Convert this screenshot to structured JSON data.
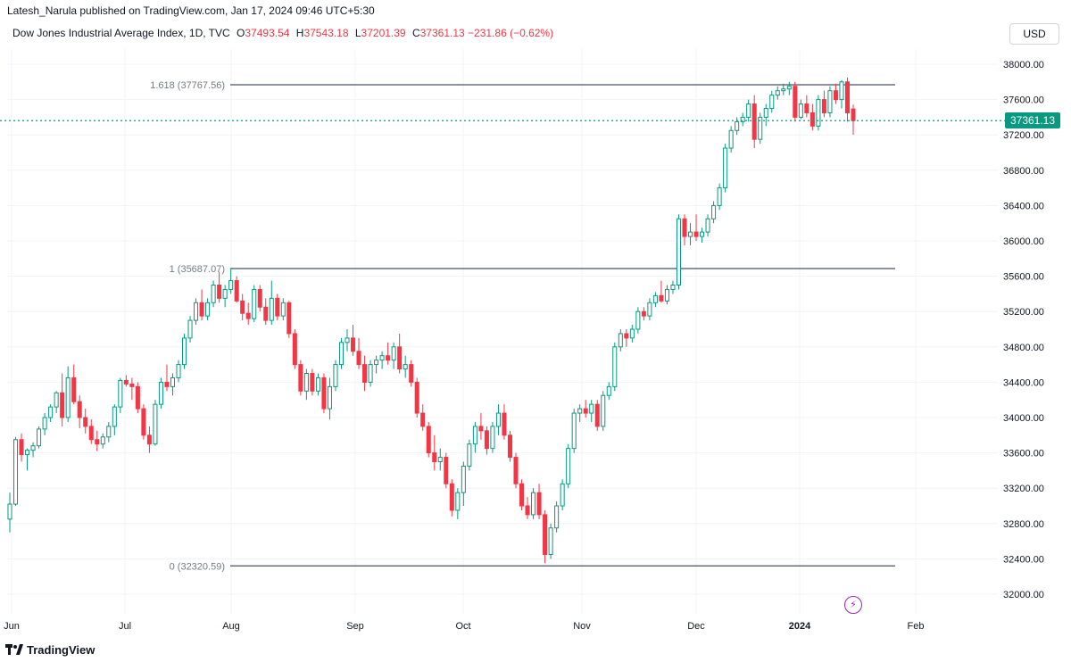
{
  "header": {
    "publish_text": "Latesh_Narula published on TradingView.com, Jan 17, 2024 09:46 UTC+5:30",
    "symbol": "Dow Jones Industrial Average Index, 1D, TVC",
    "open_label": "O",
    "open": "37493.54",
    "high_label": "H",
    "high": "37543.18",
    "low_label": "L",
    "low": "37201.39",
    "close_label": "C",
    "close": "37361.13",
    "change": "−231.86 (−0.62%)",
    "currency": "USD"
  },
  "footer": {
    "brand": "TradingView"
  },
  "colors": {
    "up": "#089981",
    "down": "#f23645",
    "fib": "#131722",
    "grid": "#f0f3fa"
  },
  "chart_data": {
    "type": "candlestick",
    "title": "Dow Jones Industrial Average Index, 1D, TVC",
    "ylim": [
      31800,
      38300
    ],
    "y_ticks": [
      "38000.00",
      "37600.00",
      "37200.00",
      "36800.00",
      "36400.00",
      "36000.00",
      "35600.00",
      "35200.00",
      "34800.00",
      "34400.00",
      "34000.00",
      "33600.00",
      "33200.00",
      "32800.00",
      "32400.00",
      "32000.00"
    ],
    "x_ticks": [
      "Jun",
      "Jul",
      "Aug",
      "Sep",
      "Oct",
      "Nov",
      "Dec",
      "2024",
      "Feb"
    ],
    "last_price": "37361.13",
    "fib_levels": [
      {
        "label": "1.618 (37767.56)",
        "value": 37767.56
      },
      {
        "label": "1 (35687.07)",
        "value": 35687.07
      },
      {
        "label": "0 (32320.59)",
        "value": 32320.59
      }
    ],
    "candles": [
      [
        32850,
        33150,
        32700,
        33020
      ],
      [
        33020,
        33780,
        33000,
        33750
      ],
      [
        33750,
        33820,
        33500,
        33580
      ],
      [
        33580,
        33650,
        33400,
        33630
      ],
      [
        33630,
        33720,
        33550,
        33680
      ],
      [
        33680,
        33900,
        33650,
        33870
      ],
      [
        33870,
        34050,
        33800,
        34000
      ],
      [
        34000,
        34150,
        33950,
        34120
      ],
      [
        34120,
        34300,
        34050,
        34280
      ],
      [
        34280,
        34500,
        33900,
        34000
      ],
      [
        34000,
        34580,
        33950,
        34450
      ],
      [
        34450,
        34600,
        34150,
        34180
      ],
      [
        34180,
        34250,
        33880,
        34000
      ],
      [
        34000,
        34100,
        33820,
        33900
      ],
      [
        33900,
        33980,
        33700,
        33750
      ],
      [
        33750,
        33850,
        33620,
        33700
      ],
      [
        33700,
        33820,
        33650,
        33780
      ],
      [
        33780,
        33950,
        33720,
        33900
      ],
      [
        33900,
        34150,
        33800,
        34120
      ],
      [
        34120,
        34450,
        34050,
        34420
      ],
      [
        34420,
        34480,
        34350,
        34380
      ],
      [
        34380,
        34450,
        34200,
        34350
      ],
      [
        34350,
        34400,
        34050,
        34100
      ],
      [
        34100,
        34150,
        33750,
        33800
      ],
      [
        33800,
        33900,
        33600,
        33700
      ],
      [
        33700,
        34200,
        33680,
        34150
      ],
      [
        34150,
        34450,
        34100,
        34400
      ],
      [
        34400,
        34600,
        34300,
        34350
      ],
      [
        34350,
        34500,
        34250,
        34450
      ],
      [
        34450,
        34650,
        34400,
        34600
      ],
      [
        34600,
        34950,
        34550,
        34900
      ],
      [
        34900,
        35150,
        34850,
        35100
      ],
      [
        35100,
        35350,
        35050,
        35300
      ],
      [
        35300,
        35450,
        35100,
        35150
      ],
      [
        35150,
        35350,
        35100,
        35300
      ],
      [
        35300,
        35550,
        35250,
        35500
      ],
      [
        35500,
        35650,
        35300,
        35350
      ],
      [
        35350,
        35500,
        35250,
        35450
      ],
      [
        35450,
        35687,
        35400,
        35550
      ],
      [
        35550,
        35600,
        35300,
        35320
      ],
      [
        35320,
        35400,
        35100,
        35180
      ],
      [
        35180,
        35300,
        35050,
        35120
      ],
      [
        35120,
        35500,
        35080,
        35450
      ],
      [
        35450,
        35500,
        35200,
        35250
      ],
      [
        35250,
        35350,
        35050,
        35100
      ],
      [
        35100,
        35550,
        35050,
        35350
      ],
      [
        35350,
        35400,
        35100,
        35150
      ],
      [
        35150,
        35350,
        35100,
        35300
      ],
      [
        35300,
        35320,
        34900,
        34950
      ],
      [
        34950,
        35000,
        34550,
        34600
      ],
      [
        34600,
        34650,
        34250,
        34300
      ],
      [
        34300,
        34550,
        34200,
        34500
      ],
      [
        34500,
        34550,
        34250,
        34300
      ],
      [
        34300,
        34500,
        34250,
        34450
      ],
      [
        34450,
        34500,
        34050,
        34100
      ],
      [
        34100,
        34450,
        33980,
        34350
      ],
      [
        34350,
        34650,
        34300,
        34600
      ],
      [
        34600,
        34900,
        34550,
        34850
      ],
      [
        34850,
        35000,
        34750,
        34900
      ],
      [
        34900,
        35050,
        34700,
        34750
      ],
      [
        34750,
        34900,
        34550,
        34600
      ],
      [
        34600,
        34700,
        34300,
        34400
      ],
      [
        34400,
        34650,
        34350,
        34600
      ],
      [
        34600,
        34700,
        34500,
        34650
      ],
      [
        34650,
        34750,
        34550,
        34700
      ],
      [
        34700,
        34850,
        34600,
        34650
      ],
      [
        34650,
        34850,
        34550,
        34800
      ],
      [
        34800,
        34950,
        34500,
        34550
      ],
      [
        34550,
        34700,
        34450,
        34600
      ],
      [
        34600,
        34650,
        34350,
        34400
      ],
      [
        34400,
        34450,
        34000,
        34050
      ],
      [
        34050,
        34150,
        33850,
        33900
      ],
      [
        33900,
        33950,
        33550,
        33600
      ],
      [
        33600,
        33800,
        33400,
        33500
      ],
      [
        33500,
        33650,
        33400,
        33550
      ],
      [
        33550,
        33600,
        33200,
        33250
      ],
      [
        33250,
        33300,
        32880,
        32950
      ],
      [
        32950,
        33200,
        32850,
        33150
      ],
      [
        33150,
        33500,
        33000,
        33450
      ],
      [
        33450,
        33750,
        33400,
        33700
      ],
      [
        33700,
        33950,
        33600,
        33900
      ],
      [
        33900,
        34050,
        33750,
        33850
      ],
      [
        33850,
        33900,
        33580,
        33650
      ],
      [
        33650,
        33950,
        33600,
        33900
      ],
      [
        33900,
        34150,
        33800,
        34050
      ],
      [
        34050,
        34150,
        33750,
        33800
      ],
      [
        33800,
        33850,
        33500,
        33550
      ],
      [
        33550,
        33600,
        33200,
        33250
      ],
      [
        33250,
        33300,
        32950,
        33000
      ],
      [
        33000,
        33100,
        32850,
        32900
      ],
      [
        32900,
        33200,
        32850,
        33150
      ],
      [
        33150,
        33250,
        32850,
        32900
      ],
      [
        32900,
        32950,
        32350,
        32450
      ],
      [
        32450,
        32800,
        32400,
        32750
      ],
      [
        32750,
        33050,
        32700,
        33000
      ],
      [
        33000,
        33300,
        32950,
        33250
      ],
      [
        33250,
        33700,
        33200,
        33650
      ],
      [
        33650,
        34100,
        33600,
        34050
      ],
      [
        34050,
        34150,
        33950,
        34100
      ],
      [
        34100,
        34200,
        34000,
        34050
      ],
      [
        34050,
        34200,
        33950,
        34150
      ],
      [
        34150,
        34200,
        33850,
        33900
      ],
      [
        33900,
        34300,
        33850,
        34250
      ],
      [
        34250,
        34400,
        34200,
        34350
      ],
      [
        34350,
        34850,
        34300,
        34800
      ],
      [
        34800,
        35000,
        34750,
        34950
      ],
      [
        34950,
        35000,
        34800,
        34900
      ],
      [
        34900,
        35050,
        34850,
        35000
      ],
      [
        35000,
        35250,
        34950,
        35200
      ],
      [
        35200,
        35250,
        35100,
        35150
      ],
      [
        35150,
        35350,
        35100,
        35300
      ],
      [
        35300,
        35420,
        35250,
        35380
      ],
      [
        35380,
        35550,
        35300,
        35320
      ],
      [
        35320,
        35500,
        35280,
        35450
      ],
      [
        35450,
        35550,
        35400,
        35500
      ],
      [
        35500,
        36300,
        35450,
        36250
      ],
      [
        36250,
        36300,
        35950,
        36050
      ],
      [
        36050,
        36200,
        35950,
        36100
      ],
      [
        36100,
        36300,
        36000,
        36050
      ],
      [
        36050,
        36150,
        35980,
        36100
      ],
      [
        36100,
        36300,
        36050,
        36250
      ],
      [
        36250,
        36450,
        36200,
        36400
      ],
      [
        36400,
        36650,
        36350,
        36600
      ],
      [
        36600,
        37100,
        36550,
        37050
      ],
      [
        37050,
        37300,
        37000,
        37250
      ],
      [
        37250,
        37400,
        37200,
        37350
      ],
      [
        37350,
        37450,
        37300,
        37400
      ],
      [
        37400,
        37600,
        37350,
        37550
      ],
      [
        37550,
        37650,
        37050,
        37150
      ],
      [
        37150,
        37450,
        37100,
        37400
      ],
      [
        37400,
        37550,
        37300,
        37500
      ],
      [
        37500,
        37700,
        37450,
        37650
      ],
      [
        37650,
        37750,
        37600,
        37700
      ],
      [
        37700,
        37780,
        37650,
        37720
      ],
      [
        37720,
        37800,
        37650,
        37750
      ],
      [
        37750,
        37800,
        37350,
        37400
      ],
      [
        37400,
        37600,
        37380,
        37550
      ],
      [
        37550,
        37650,
        37400,
        37450
      ],
      [
        37450,
        37550,
        37250,
        37300
      ],
      [
        37300,
        37650,
        37250,
        37600
      ],
      [
        37600,
        37700,
        37400,
        37450
      ],
      [
        37450,
        37750,
        37400,
        37700
      ],
      [
        37700,
        37780,
        37550,
        37600
      ],
      [
        37600,
        37820,
        37500,
        37800
      ],
      [
        37800,
        37850,
        37350,
        37450
      ],
      [
        37493.54,
        37543.18,
        37201.39,
        37361.13
      ]
    ]
  }
}
